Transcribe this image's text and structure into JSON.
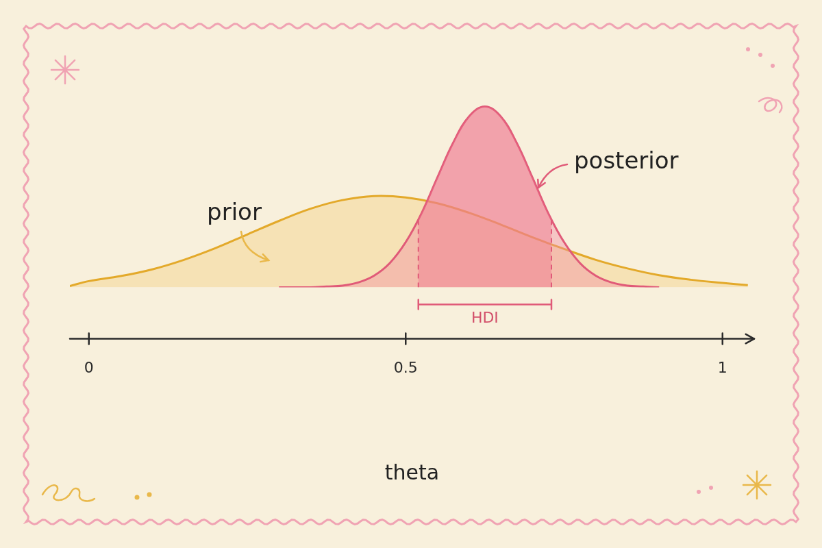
{
  "chart_data": {
    "type": "area",
    "xlabel": "theta",
    "series": [
      {
        "name": "prior",
        "color": "#e3a92a",
        "x": [
          -0.03,
          0,
          0.05,
          0.1,
          0.15,
          0.2,
          0.25,
          0.3,
          0.35,
          0.4,
          0.45,
          0.5,
          0.55,
          0.6,
          0.65,
          0.7,
          0.75,
          0.8,
          0.85,
          0.9,
          0.95,
          1,
          1.04
        ],
        "values": [
          0.03,
          0.14,
          0.25,
          0.4,
          0.61,
          0.87,
          1.17,
          1.47,
          1.74,
          1.93,
          2.02,
          1.99,
          1.86,
          1.65,
          1.39,
          1.11,
          0.85,
          0.61,
          0.42,
          0.27,
          0.17,
          0.1,
          0.05
        ]
      },
      {
        "name": "posterior",
        "color": "#e05a78",
        "x": [
          0.3,
          0.325,
          0.35,
          0.375,
          0.4,
          0.425,
          0.45,
          0.475,
          0.5,
          0.525,
          0.55,
          0.575,
          0.6,
          0.625,
          0.65,
          0.675,
          0.7,
          0.725,
          0.75,
          0.775,
          0.8,
          0.825,
          0.85,
          0.875,
          0.9
        ],
        "values": [
          0,
          0,
          0,
          0.02,
          0.04,
          0.11,
          0.26,
          0.54,
          1.0,
          1.64,
          2.43,
          3.2,
          3.78,
          4.0,
          3.78,
          3.2,
          2.43,
          1.64,
          1.0,
          0.54,
          0.26,
          0.11,
          0.04,
          0.02,
          0
        ]
      }
    ],
    "hdi": {
      "label": "HDI",
      "range": [
        0.52,
        0.73
      ]
    },
    "xlim": [
      -0.03,
      1.05
    ],
    "xticks": [
      0,
      0.5,
      1
    ],
    "ylim": [
      0,
      4.4
    ],
    "tick_labels": "x",
    "grid": false
  }
}
